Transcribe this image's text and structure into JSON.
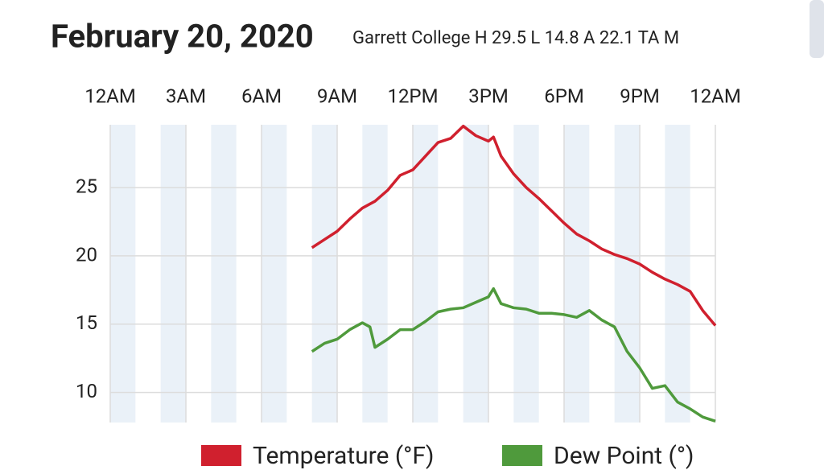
{
  "chart_data": {
    "type": "line",
    "title": "February 20, 2020",
    "subtitle": "Garrett College H 29.5 L 14.8 A 22.1 TA M",
    "x": [
      8,
      8.5,
      9,
      9.5,
      10,
      10.3,
      10.5,
      11,
      11.5,
      12,
      12.5,
      13,
      13.5,
      14,
      14.5,
      15,
      15.2,
      15.5,
      16,
      16.5,
      17,
      17.5,
      18,
      18.5,
      19,
      19.5,
      20,
      20.5,
      21,
      21.5,
      22,
      22.5,
      23,
      23.5,
      24
    ],
    "series": [
      {
        "name": "Temperature (°F)",
        "color": "#d0202e",
        "values": [
          20.6,
          21.2,
          21.8,
          22.7,
          23.5,
          23.8,
          24.0,
          24.8,
          25.9,
          26.3,
          27.3,
          28.3,
          28.6,
          29.5,
          28.8,
          28.4,
          28.7,
          27.3,
          26.0,
          25.0,
          24.2,
          23.3,
          22.4,
          21.6,
          21.1,
          20.5,
          20.1,
          19.8,
          19.4,
          18.8,
          18.3,
          17.9,
          17.4,
          16.0,
          14.9
        ]
      },
      {
        "name": "Dew Point (°)",
        "color": "#4f9a3c",
        "values": [
          13.0,
          13.6,
          13.9,
          14.6,
          15.1,
          14.8,
          13.3,
          13.9,
          14.6,
          14.6,
          15.2,
          15.9,
          16.1,
          16.2,
          16.6,
          17.0,
          17.6,
          16.5,
          16.2,
          16.1,
          15.8,
          15.8,
          15.7,
          15.5,
          16.0,
          15.3,
          14.8,
          13.0,
          11.8,
          10.3,
          10.5,
          9.3,
          8.8,
          8.2,
          7.9
        ]
      }
    ],
    "xlim": [
      0,
      24
    ],
    "xticks": [
      {
        "value": 0,
        "label": "12AM"
      },
      {
        "value": 3,
        "label": "3AM"
      },
      {
        "value": 6,
        "label": "6AM"
      },
      {
        "value": 9,
        "label": "9AM"
      },
      {
        "value": 12,
        "label": "12PM"
      },
      {
        "value": 15,
        "label": "3PM"
      },
      {
        "value": 18,
        "label": "6PM"
      },
      {
        "value": 21,
        "label": "9PM"
      },
      {
        "value": 24,
        "label": "12AM"
      }
    ],
    "ylim": [
      7.8,
      29.6
    ],
    "yticks": [
      10,
      15,
      20,
      25
    ],
    "grid": true
  }
}
